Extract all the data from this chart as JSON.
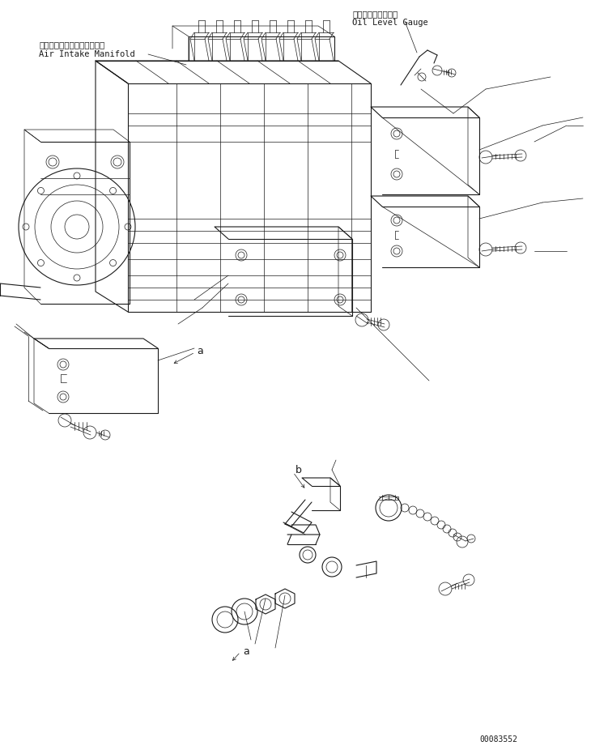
{
  "bg_color": "#ffffff",
  "line_color": "#1a1a1a",
  "fig_width": 7.3,
  "fig_height": 9.26,
  "dpi": 100,
  "label_japanese_1": "エアーインテークマニホルド",
  "label_english_1": "Air Intake Manifold",
  "label_japanese_2": "オイルレベルゲージ",
  "label_english_2": "Oil Level Gauge",
  "part_number": "00083552",
  "lw_thin": 0.5,
  "lw_med": 0.8,
  "lw_thick": 1.2
}
